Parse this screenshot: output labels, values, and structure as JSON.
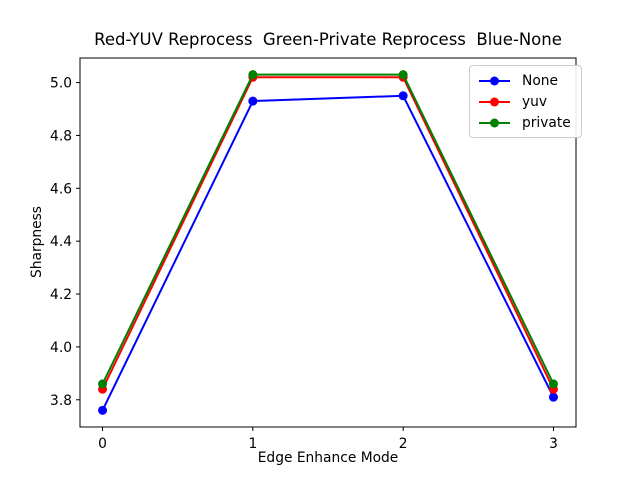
{
  "chart_data": {
    "type": "line",
    "title": "Red-YUV Reprocess  Green-Private Reprocess  Blue-None",
    "xlabel": "Edge Enhance Mode",
    "ylabel": "Sharpness",
    "x": [
      0,
      1,
      2,
      3
    ],
    "series": [
      {
        "name": "None",
        "color": "#0000ff",
        "values": [
          3.76,
          4.93,
          4.95,
          3.81
        ]
      },
      {
        "name": "yuv",
        "color": "#ff0000",
        "values": [
          3.84,
          5.02,
          5.02,
          3.84
        ]
      },
      {
        "name": "private",
        "color": "#008000",
        "values": [
          3.86,
          5.03,
          5.03,
          3.86
        ]
      }
    ],
    "xlim": [
      -0.15,
      3.15
    ],
    "ylim": [
      3.697,
      5.093
    ],
    "x_tick_values": [
      0,
      1,
      2,
      3
    ],
    "x_tick_labels": [
      "0",
      "1",
      "2",
      "3"
    ],
    "y_tick_values": [
      3.8,
      4.0,
      4.2,
      4.4,
      4.6,
      4.8,
      5.0
    ],
    "y_tick_labels": [
      "3.8",
      "4.0",
      "4.2",
      "4.4",
      "4.6",
      "4.8",
      "5.0"
    ],
    "grid": false,
    "marker": "circle",
    "legend": {
      "position": "upper right",
      "entries": [
        "None",
        "yuv",
        "private"
      ]
    },
    "colors": {
      "spine": "#000000",
      "background": "#ffffff",
      "legend_border": "#cccccc"
    }
  }
}
